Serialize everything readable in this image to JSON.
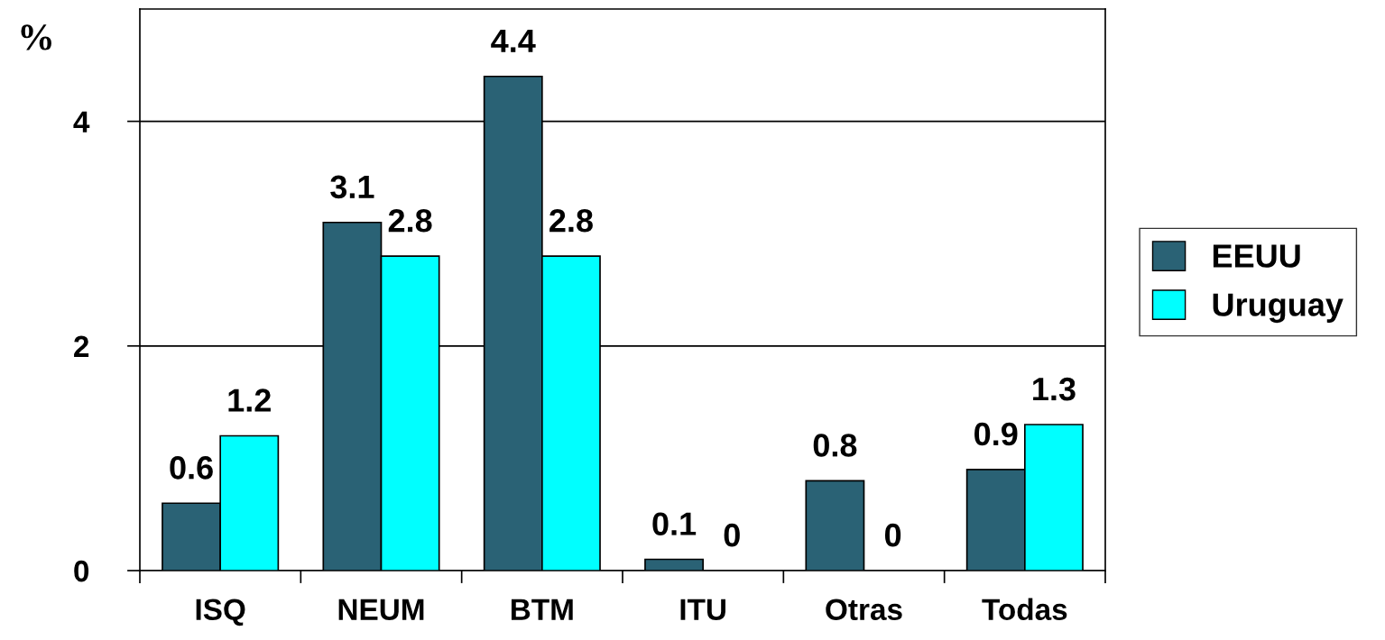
{
  "chart_data": {
    "type": "bar",
    "ylabel": "%",
    "categories": [
      "ISQ",
      "NEUM",
      "BTM",
      "ITU",
      "Otras",
      "Todas"
    ],
    "series": [
      {
        "name": "EEUU",
        "color": "#2a6275",
        "values": [
          0.6,
          3.1,
          4.4,
          0.1,
          0.8,
          0.9
        ]
      },
      {
        "name": "Uruguay",
        "color": "#00ffff",
        "values": [
          1.2,
          2.8,
          2.8,
          0,
          0,
          1.3
        ]
      }
    ],
    "ylim": [
      0,
      5
    ],
    "yticks": [
      0,
      2,
      4
    ],
    "grid": "y",
    "legend": "right",
    "data_labels": true
  }
}
